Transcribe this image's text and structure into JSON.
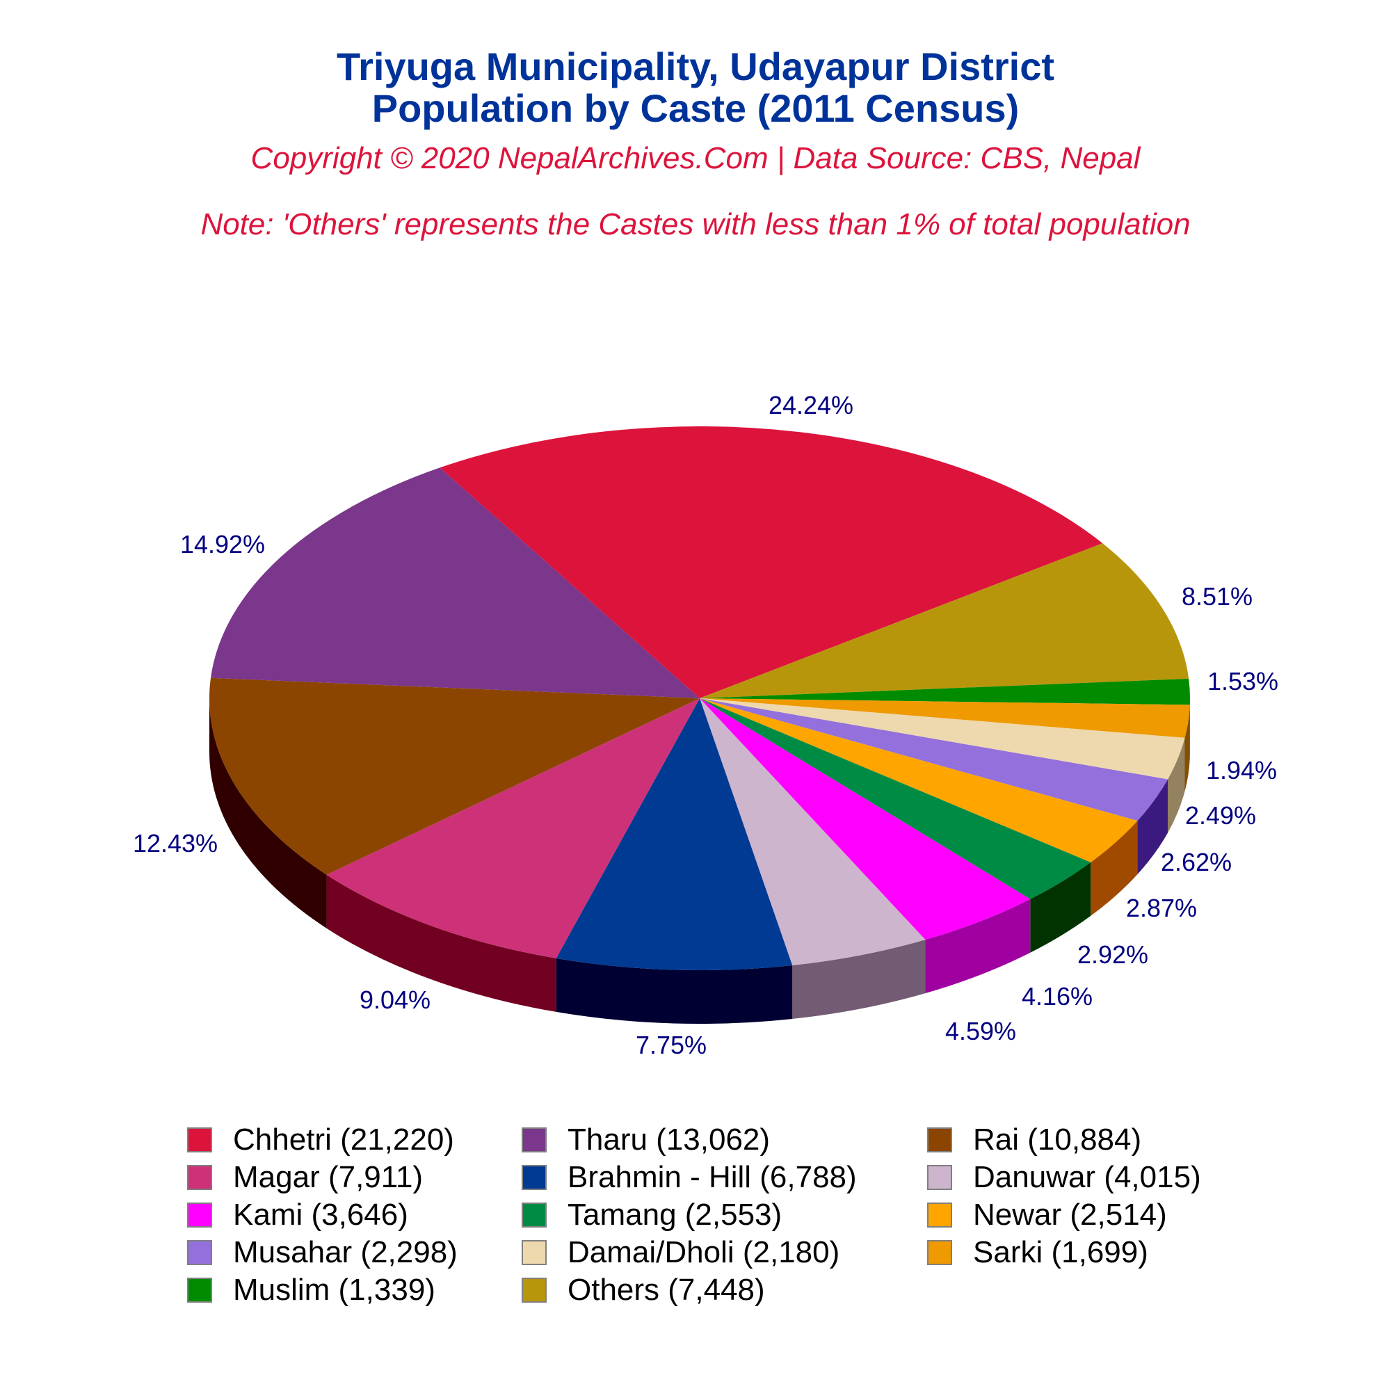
{
  "header": {
    "title_line1": "Triyuga Municipality, Udayapur District",
    "title_line2": "Population by Caste (2011 Census)",
    "copyright": "Copyright © 2020 NepalArchives.Com | Data Source: CBS, Nepal",
    "note": "Note: 'Others' represents the Castes with less than 1% of total population"
  },
  "chart_data": {
    "type": "pie",
    "style": "3d",
    "title": "Triyuga Municipality, Udayapur District — Population by Caste (2011 Census)",
    "legend_position": "bottom",
    "categories": [
      "Chhetri",
      "Others",
      "Muslim",
      "Sarki",
      "Damai/Dholi",
      "Musahar",
      "Newar",
      "Tamang",
      "Kami",
      "Danuwar",
      "Brahmin - Hill",
      "Magar",
      "Rai",
      "Tharu"
    ],
    "values": [
      21220,
      7448,
      1339,
      1699,
      2180,
      2298,
      2514,
      2553,
      3646,
      4015,
      6788,
      7911,
      10884,
      13062
    ],
    "percent_labels": [
      "24.24%",
      "8.51%",
      "1.53%",
      "1.94%",
      "2.49%",
      "2.62%",
      "2.87%",
      "2.92%",
      "4.16%",
      "4.59%",
      "7.75%",
      "9.04%",
      "12.43%",
      "14.92%"
    ],
    "colors": [
      "#dc143c",
      "#b8960c",
      "#008b00",
      "#ee9a00",
      "#eed8ae",
      "#9370db",
      "#ffa500",
      "#008b45",
      "#ff00ff",
      "#cdb5cd",
      "#003a93",
      "#cd3278",
      "#8b4500",
      "#7a378b"
    ],
    "side_colors": [
      "#7a0b22",
      "#665306",
      "#004d00",
      "#844f00",
      "#948160",
      "#3b1a80",
      "#a04a00",
      "#003300",
      "#a000a0",
      "#725b73",
      "#000033",
      "#720020",
      "#300000",
      "#431e4d"
    ]
  },
  "legend": {
    "items": [
      {
        "label": "Chhetri (21,220)",
        "color": "#dc143c"
      },
      {
        "label": "Tharu (13,062)",
        "color": "#7a378b"
      },
      {
        "label": "Rai (10,884)",
        "color": "#8b4500"
      },
      {
        "label": "Magar (7,911)",
        "color": "#cd3278"
      },
      {
        "label": "Brahmin - Hill (6,788)",
        "color": "#003a93"
      },
      {
        "label": "Danuwar (4,015)",
        "color": "#cdb5cd"
      },
      {
        "label": "Kami (3,646)",
        "color": "#ff00ff"
      },
      {
        "label": "Tamang (2,553)",
        "color": "#008b45"
      },
      {
        "label": "Newar (2,514)",
        "color": "#ffa500"
      },
      {
        "label": "Musahar (2,298)",
        "color": "#9370db"
      },
      {
        "label": "Damai/Dholi (2,180)",
        "color": "#eed8ae"
      },
      {
        "label": "Sarki (1,699)",
        "color": "#ee9a00"
      },
      {
        "label": "Muslim (1,339)",
        "color": "#008b00"
      },
      {
        "label": "Others (7,448)",
        "color": "#b8960c"
      }
    ]
  },
  "colors": {
    "title": "#003399",
    "subtitle": "#dc143c",
    "data_label": "#000080"
  }
}
